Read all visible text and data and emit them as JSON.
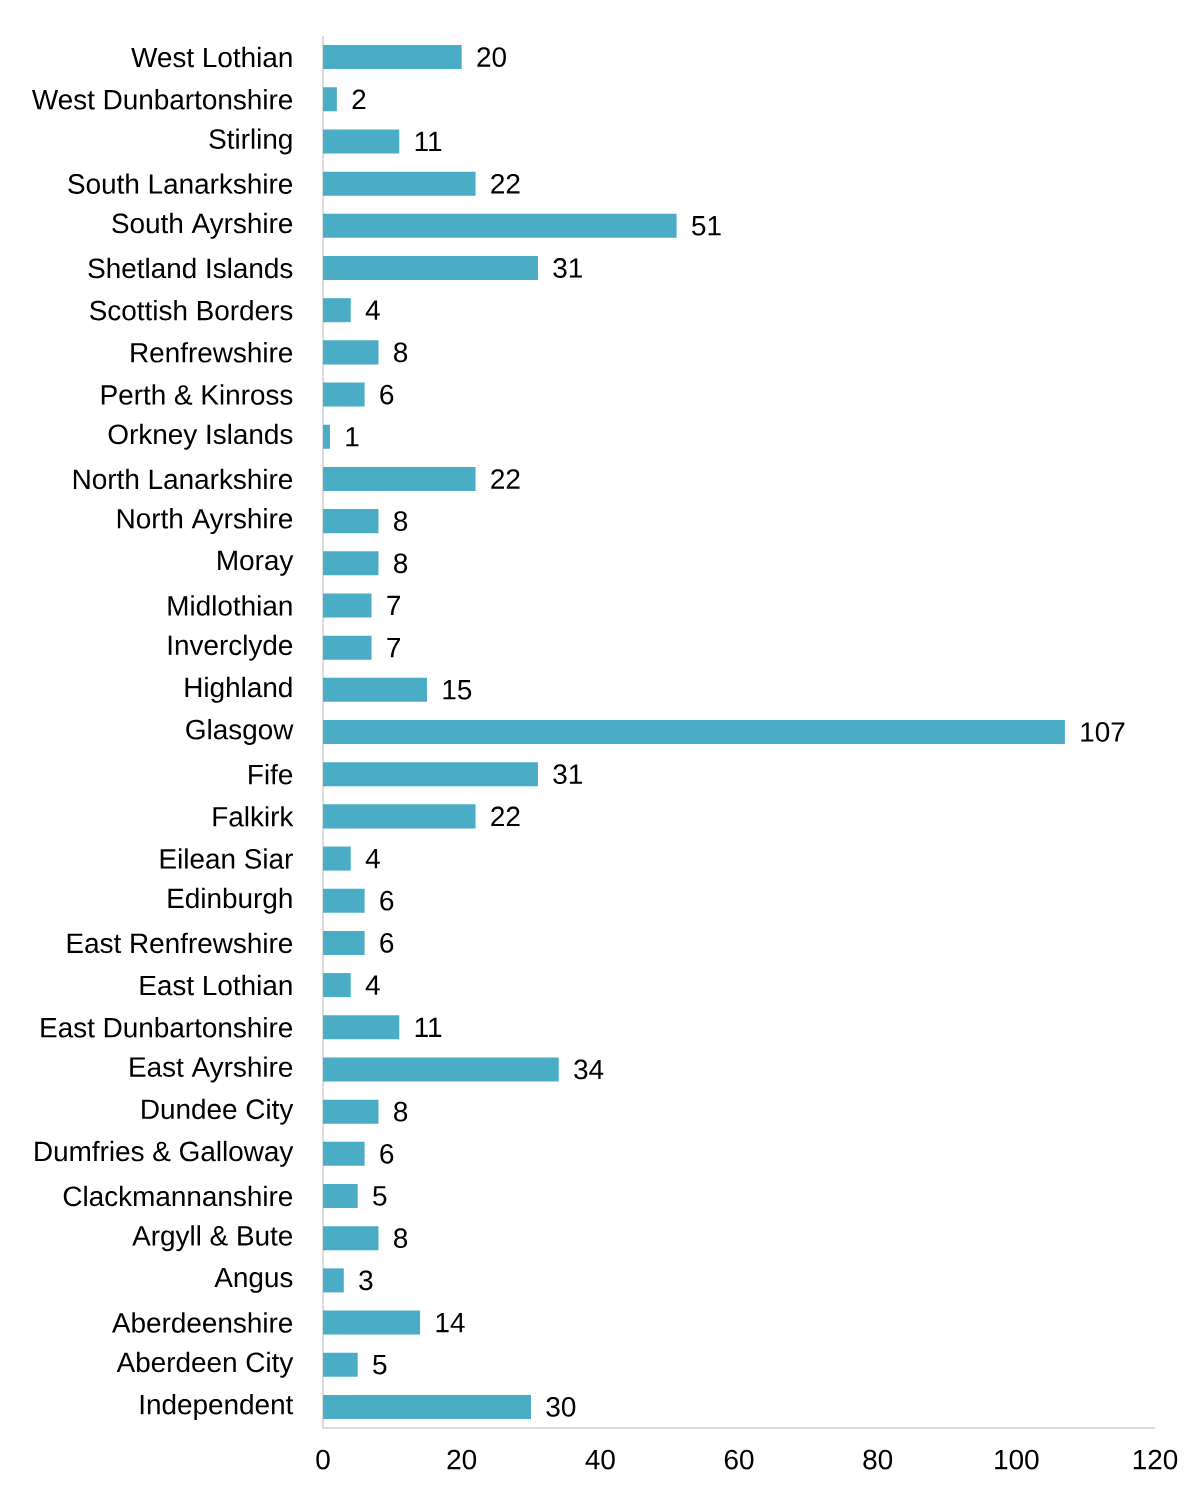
{
  "chart_data": {
    "type": "bar",
    "orientation": "horizontal",
    "categories": [
      "West Lothian",
      "West Dunbartonshire",
      "Stirling",
      "South Lanarkshire",
      "South Ayrshire",
      "Shetland Islands",
      "Scottish Borders",
      "Renfrewshire",
      "Perth & Kinross",
      "Orkney Islands",
      "North Lanarkshire",
      "North Ayrshire",
      "Moray",
      "Midlothian",
      "Inverclyde",
      "Highland",
      "Glasgow",
      "Fife",
      "Falkirk",
      "Eilean Siar",
      "Edinburgh",
      "East Renfrewshire",
      "East Lothian",
      "East Dunbartonshire",
      "East Ayrshire",
      "Dundee City",
      "Dumfries & Galloway",
      "Clackmannanshire",
      "Argyll & Bute",
      "Angus",
      "Aberdeenshire",
      "Aberdeen City",
      "Independent"
    ],
    "values": [
      20,
      2,
      11,
      22,
      51,
      31,
      4,
      8,
      6,
      1,
      22,
      8,
      8,
      7,
      7,
      15,
      107,
      31,
      22,
      4,
      6,
      6,
      4,
      11,
      34,
      8,
      6,
      5,
      8,
      3,
      14,
      5,
      30
    ],
    "color": "#4bacc6",
    "xlim": [
      0,
      120
    ],
    "xticks": [
      0,
      20,
      40,
      60,
      80,
      100,
      120
    ],
    "data_labels": true
  }
}
